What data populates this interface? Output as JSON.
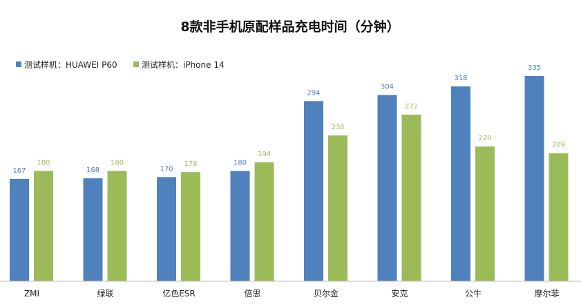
{
  "chart_data": {
    "type": "bar",
    "title": "8款非手机原配样品充电时间（分钟）",
    "xlabel": "",
    "ylabel": "",
    "categories": [
      "ZMI",
      "绿联",
      "亿色ESR",
      "倍思",
      "贝尔金",
      "安克",
      "公牛",
      "摩尔菲"
    ],
    "series": [
      {
        "name": "测试样机：HUAWEI P60",
        "color": "#4f81bd",
        "values": [
          167,
          168,
          170,
          180,
          294,
          304,
          318,
          335
        ]
      },
      {
        "name": "测试样机：iPhone 14",
        "color": "#9bbb59",
        "values": [
          180,
          180,
          178,
          194,
          238,
          272,
          220,
          209
        ]
      }
    ],
    "ylim": [
      0,
      360
    ],
    "grid": false,
    "legend": "top-left"
  }
}
